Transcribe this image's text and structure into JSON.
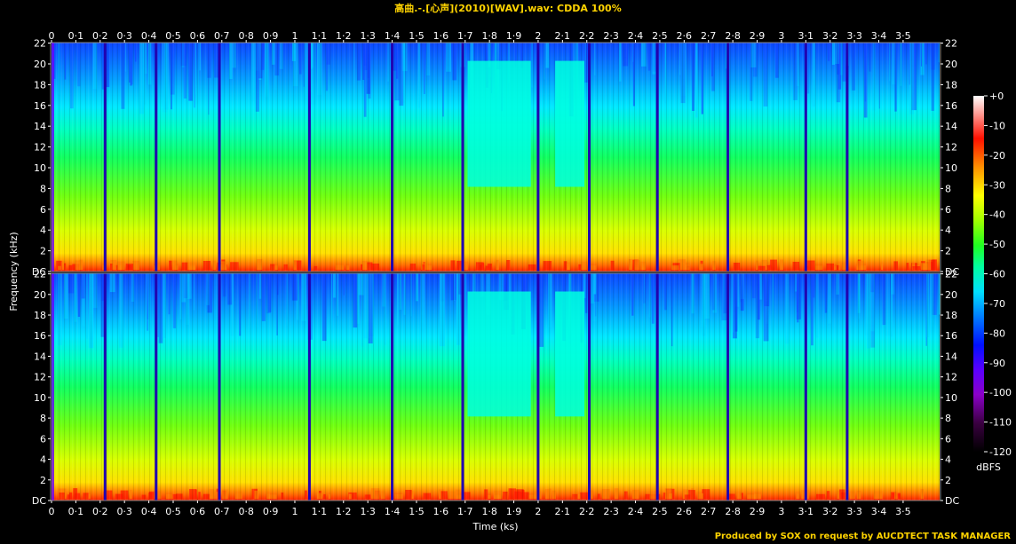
{
  "title": "高曲.-.[心声](2010)[WAV].wav: CDDA 100%",
  "credit": "Produced by SOX on request by AUCDTECT TASK MANAGER",
  "chart_data": {
    "type": "heatmap",
    "channels": 2,
    "xlabel": "Time (ks)",
    "ylabel": "Frequency (kHz)",
    "xlim": [
      0,
      3.65
    ],
    "ylim": [
      0,
      22.05
    ],
    "x_ticks": [
      "0",
      "0·1",
      "0·2",
      "0·3",
      "0·4",
      "0·5",
      "0·6",
      "0·7",
      "0·8",
      "0·9",
      "1",
      "1·1",
      "1·2",
      "1·3",
      "1·4",
      "1·5",
      "1·6",
      "1·7",
      "1·8",
      "1·9",
      "2",
      "2·1",
      "2·2",
      "2·3",
      "2·4",
      "2·5",
      "2·6",
      "2·7",
      "2·8",
      "2·9",
      "3",
      "3·1",
      "3·2",
      "3·3",
      "3·4",
      "3·5"
    ],
    "y_ticks": [
      "DC",
      "2",
      "4",
      "6",
      "8",
      "10",
      "12",
      "14",
      "16",
      "18",
      "20",
      "22"
    ],
    "colorbar": {
      "label": "dBFS",
      "ticks": [
        "+0",
        "-10",
        "-20",
        "-30",
        "-40",
        "-50",
        "-60",
        "-70",
        "-80",
        "-90",
        "-100",
        "-110",
        "-120"
      ],
      "range": [
        -120,
        0
      ]
    },
    "track_boundaries_ks": [
      0.22,
      0.43,
      0.69,
      1.06,
      1.4,
      1.69,
      2.0,
      2.21,
      2.49,
      2.78,
      3.1,
      3.27
    ],
    "silent_gap_tracks": [
      {
        "start": 1.71,
        "end": 1.97
      },
      {
        "start": 2.07,
        "end": 2.19
      }
    ]
  },
  "colors": {
    "title": "#ffd400",
    "background": "#000000",
    "scale": [
      "#000000",
      "#3a0040",
      "#8a00c8",
      "#5a00ff",
      "#0010ff",
      "#0070ff",
      "#00e0ff",
      "#00ffa0",
      "#20ff20",
      "#a0ff00",
      "#ffff00",
      "#ff9000",
      "#ff1000",
      "#ffffff"
    ]
  }
}
